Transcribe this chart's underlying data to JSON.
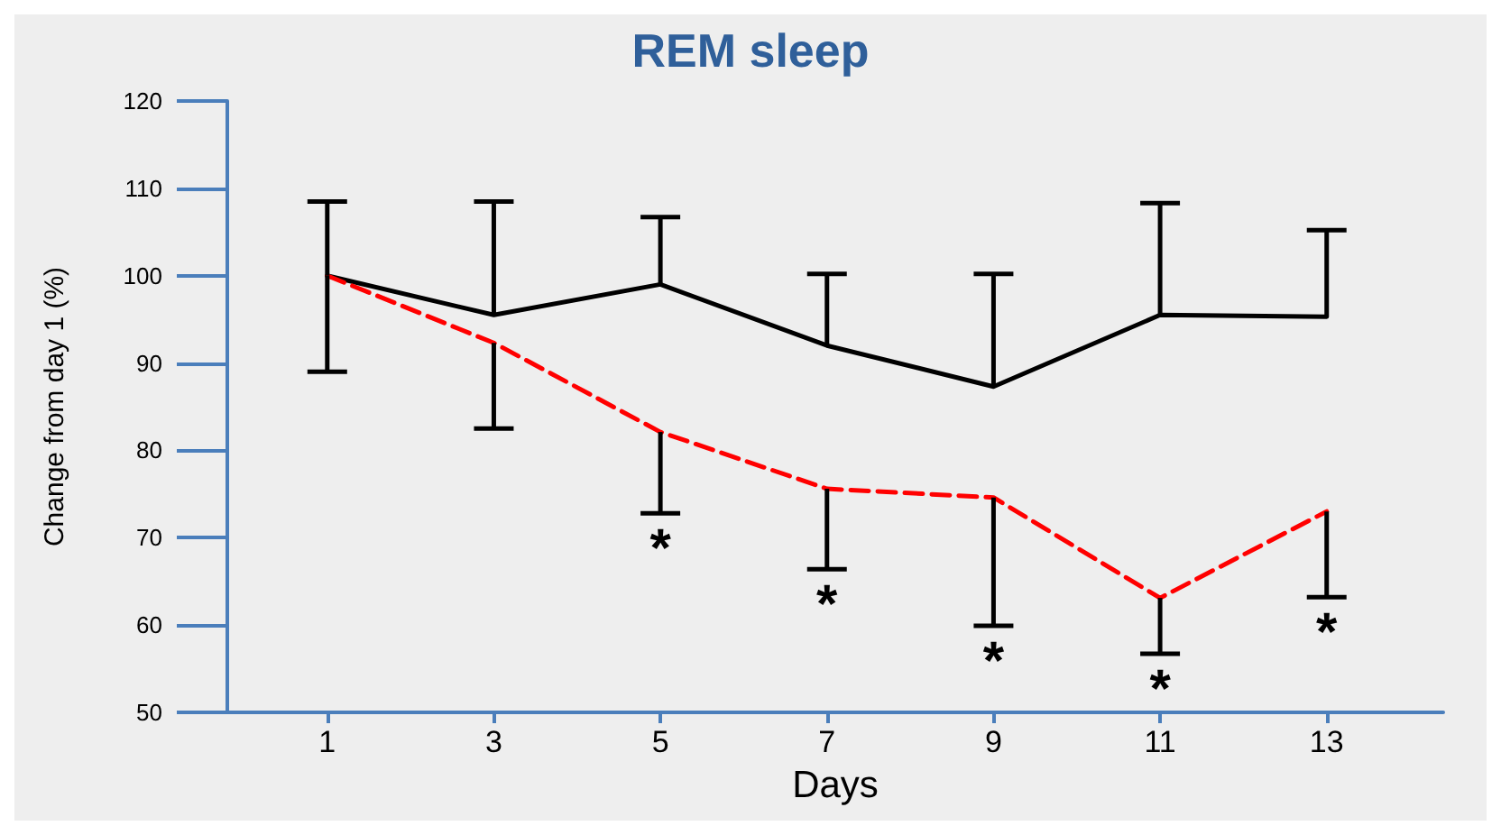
{
  "chart_data": {
    "type": "line",
    "title": "REM sleep",
    "xlabel": "Days",
    "ylabel": "Change from day 1 (%)",
    "x": [
      1,
      3,
      5,
      7,
      9,
      11,
      13
    ],
    "series": [
      {
        "color": "#000000",
        "line_style": "solid",
        "values": [
          100,
          95.5,
          99,
          92,
          87.3,
          95.5,
          95.3
        ],
        "errors": [
          [
            100,
            108.5
          ],
          [
            95.5,
            108.5
          ],
          [
            99,
            106.7
          ],
          [
            92,
            100.2
          ],
          [
            87.3,
            100.2
          ],
          [
            95.5,
            108.3
          ],
          [
            95.3,
            105.2
          ]
        ]
      },
      {
        "color": "#ff0000",
        "line_style": "dashed",
        "values": [
          100,
          92.3,
          82.1,
          75.6,
          74.6,
          63.1,
          73
        ],
        "errors": [
          [
            89,
            100
          ],
          [
            82.5,
            92.3
          ],
          [
            72.8,
            82.1
          ],
          [
            66.4,
            75.6
          ],
          [
            59.9,
            74.6
          ],
          [
            56.7,
            63.1
          ],
          [
            63.2,
            73
          ]
        ]
      }
    ],
    "xlim": [
      -0.2,
      14.4
    ],
    "xticks": [
      1,
      3,
      5,
      7,
      9,
      11,
      13
    ],
    "ylim": [
      50,
      120
    ],
    "yticks": [
      50,
      60,
      70,
      80,
      90,
      100,
      110,
      120
    ],
    "grid": false,
    "marker": "none",
    "annotations": [
      {
        "text": "*",
        "x": 5,
        "y": 72.8
      },
      {
        "text": "*",
        "x": 7,
        "y": 66.4
      },
      {
        "text": "*",
        "x": 9,
        "y": 59.9
      },
      {
        "text": "*",
        "x": 11,
        "y": 56.7
      },
      {
        "text": "*",
        "x": 13,
        "y": 63.2
      }
    ]
  }
}
